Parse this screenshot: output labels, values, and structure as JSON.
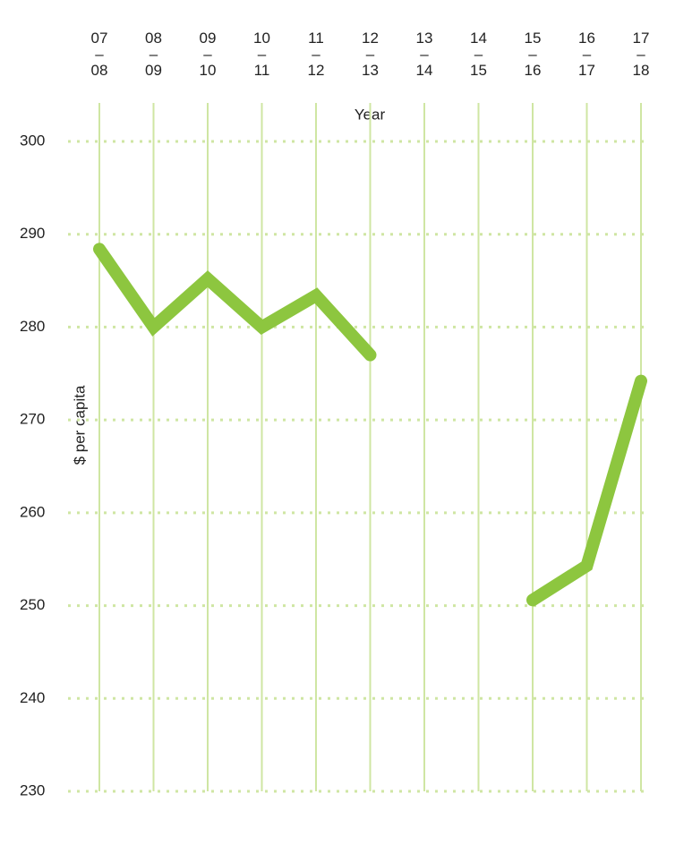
{
  "chart_data": {
    "type": "line",
    "x_label": "Year",
    "y_label": "$ per capita",
    "categories": [
      "07 – 08",
      "08 – 09",
      "09 – 10",
      "10 – 11",
      "11 – 12",
      "12 – 13",
      "13 – 14",
      "14 – 15",
      "15 – 16",
      "16 – 17",
      "17 – 18"
    ],
    "series": [
      {
        "color": "#8dc63f",
        "values": [
          288.4,
          280,
          285.2,
          280,
          283.4,
          277,
          null,
          null,
          250.6,
          254.3,
          274.2
        ]
      }
    ],
    "ylim": [
      230,
      300
    ],
    "yticks": [
      230,
      240,
      250,
      260,
      270,
      280,
      290,
      300
    ],
    "grid": true
  }
}
